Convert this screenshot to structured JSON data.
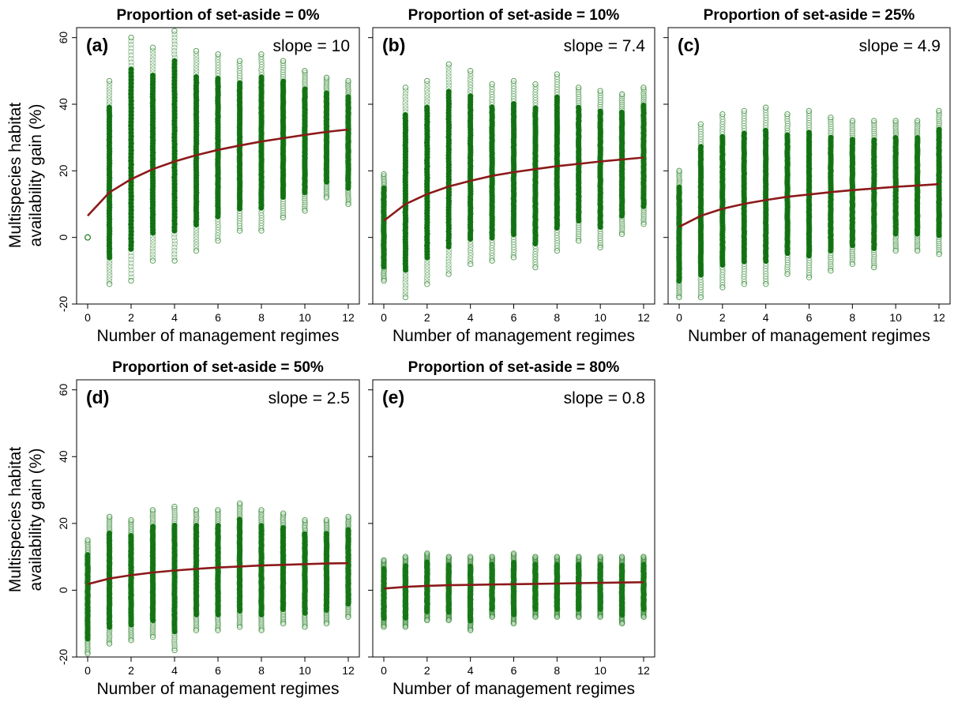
{
  "figure": {
    "ylabel_lines": [
      "Multispecies habitat",
      "availability gain (%)"
    ]
  },
  "colors": {
    "points": "#1a7a1a",
    "points_dense": "#0e6b0e",
    "curve": "#8b1a1a",
    "axis": "#000000"
  },
  "chart_data": [
    {
      "type": "scatter",
      "title": "Proportion of set-aside = 0%",
      "panel_label": "(a)",
      "annotation": "slope = 10",
      "xlabel": "Number of management regimes",
      "ylabel": "Multispecies habitat availability gain (%)",
      "xlim": [
        0,
        12
      ],
      "ylim": [
        -20,
        63
      ],
      "x_ticks": [
        0,
        2,
        4,
        6,
        8,
        10,
        12
      ],
      "y_ticks": [
        -20,
        0,
        20,
        40,
        60
      ],
      "points_ranges": [
        {
          "x": 0,
          "min": 0,
          "max": 0
        },
        {
          "x": 1,
          "min": -14,
          "max": 47
        },
        {
          "x": 2,
          "min": -13,
          "max": 60
        },
        {
          "x": 3,
          "min": -7,
          "max": 57
        },
        {
          "x": 4,
          "min": -7,
          "max": 62
        },
        {
          "x": 5,
          "min": -4,
          "max": 56
        },
        {
          "x": 6,
          "min": -1,
          "max": 55
        },
        {
          "x": 7,
          "min": 2,
          "max": 53
        },
        {
          "x": 8,
          "min": 2,
          "max": 55
        },
        {
          "x": 9,
          "min": 6,
          "max": 53
        },
        {
          "x": 10,
          "min": 8,
          "max": 50
        },
        {
          "x": 11,
          "min": 12,
          "max": 48
        },
        {
          "x": 12,
          "min": 10,
          "max": 47
        }
      ],
      "fit_curve": {
        "x": [
          0,
          1,
          2,
          3,
          4,
          5,
          6,
          7,
          8,
          9,
          10,
          11,
          12
        ],
        "y": [
          6.5,
          13.5,
          17.5,
          20.5,
          22.8,
          24.7,
          26.3,
          27.6,
          28.8,
          29.8,
          30.8,
          31.7,
          32.4
        ]
      }
    },
    {
      "type": "scatter",
      "title": "Proportion of set-aside = 10%",
      "panel_label": "(b)",
      "annotation": "slope = 7.4",
      "xlabel": "Number of management regimes",
      "xlim": [
        0,
        12
      ],
      "ylim": [
        -20,
        63
      ],
      "x_ticks": [
        0,
        2,
        4,
        6,
        8,
        10,
        12
      ],
      "y_ticks": [
        -20,
        0,
        20,
        40,
        60
      ],
      "points_ranges": [
        {
          "x": 0,
          "min": -13,
          "max": 19
        },
        {
          "x": 1,
          "min": -18,
          "max": 45
        },
        {
          "x": 2,
          "min": -14,
          "max": 47
        },
        {
          "x": 3,
          "min": -11,
          "max": 52
        },
        {
          "x": 4,
          "min": -8,
          "max": 50
        },
        {
          "x": 5,
          "min": -7,
          "max": 46
        },
        {
          "x": 6,
          "min": -6,
          "max": 47
        },
        {
          "x": 7,
          "min": -9,
          "max": 46
        },
        {
          "x": 8,
          "min": -4,
          "max": 49
        },
        {
          "x": 9,
          "min": -1,
          "max": 45
        },
        {
          "x": 10,
          "min": -3,
          "max": 44
        },
        {
          "x": 11,
          "min": 1,
          "max": 43
        },
        {
          "x": 12,
          "min": 4,
          "max": 45
        }
      ],
      "fit_curve": {
        "x": [
          0,
          1,
          2,
          3,
          4,
          5,
          6,
          7,
          8,
          9,
          10,
          11,
          12
        ],
        "y": [
          5,
          10,
          13,
          15.3,
          17,
          18.5,
          19.6,
          20.5,
          21.4,
          22.1,
          22.8,
          23.4,
          24
        ]
      }
    },
    {
      "type": "scatter",
      "title": "Proportion of set-aside = 25%",
      "panel_label": "(c)",
      "annotation": "slope = 4.9",
      "xlabel": "Number of management regimes",
      "xlim": [
        0,
        12
      ],
      "ylim": [
        -20,
        63
      ],
      "x_ticks": [
        0,
        2,
        4,
        6,
        8,
        10,
        12
      ],
      "y_ticks": [
        -20,
        0,
        20,
        40,
        60
      ],
      "points_ranges": [
        {
          "x": 0,
          "min": -18,
          "max": 20
        },
        {
          "x": 1,
          "min": -18,
          "max": 34
        },
        {
          "x": 2,
          "min": -15,
          "max": 37
        },
        {
          "x": 3,
          "min": -14,
          "max": 38
        },
        {
          "x": 4,
          "min": -14,
          "max": 39
        },
        {
          "x": 5,
          "min": -11,
          "max": 37
        },
        {
          "x": 6,
          "min": -12,
          "max": 38
        },
        {
          "x": 7,
          "min": -10,
          "max": 36
        },
        {
          "x": 8,
          "min": -8,
          "max": 35
        },
        {
          "x": 9,
          "min": -9,
          "max": 35
        },
        {
          "x": 10,
          "min": -4,
          "max": 35
        },
        {
          "x": 11,
          "min": -4,
          "max": 35
        },
        {
          "x": 12,
          "min": -5,
          "max": 38
        }
      ],
      "fit_curve": {
        "x": [
          0,
          1,
          2,
          3,
          4,
          5,
          6,
          7,
          8,
          9,
          10,
          11,
          12
        ],
        "y": [
          3.2,
          6.5,
          8.6,
          10.1,
          11.2,
          12.2,
          12.9,
          13.6,
          14.2,
          14.7,
          15.2,
          15.6,
          16
        ]
      }
    },
    {
      "type": "scatter",
      "title": "Proportion of set-aside = 50%",
      "panel_label": "(d)",
      "annotation": "slope = 2.5",
      "xlabel": "Number of management regimes",
      "ylabel": "Multispecies habitat availability gain (%)",
      "xlim": [
        0,
        12
      ],
      "ylim": [
        -20,
        63
      ],
      "x_ticks": [
        0,
        2,
        4,
        6,
        8,
        10,
        12
      ],
      "y_ticks": [
        -20,
        0,
        20,
        40,
        60
      ],
      "points_ranges": [
        {
          "x": 0,
          "min": -19,
          "max": 15
        },
        {
          "x": 1,
          "min": -16,
          "max": 22
        },
        {
          "x": 2,
          "min": -15,
          "max": 21
        },
        {
          "x": 3,
          "min": -14,
          "max": 24
        },
        {
          "x": 4,
          "min": -18,
          "max": 25
        },
        {
          "x": 5,
          "min": -12,
          "max": 24
        },
        {
          "x": 6,
          "min": -12,
          "max": 24
        },
        {
          "x": 7,
          "min": -11,
          "max": 26
        },
        {
          "x": 8,
          "min": -12,
          "max": 24
        },
        {
          "x": 9,
          "min": -10,
          "max": 23
        },
        {
          "x": 10,
          "min": -11,
          "max": 21
        },
        {
          "x": 11,
          "min": -10,
          "max": 21
        },
        {
          "x": 12,
          "min": -8,
          "max": 22
        }
      ],
      "fit_curve": {
        "x": [
          0,
          1,
          2,
          3,
          4,
          5,
          6,
          7,
          8,
          9,
          10,
          11,
          12
        ],
        "y": [
          1.8,
          3.5,
          4.5,
          5.3,
          5.9,
          6.4,
          6.8,
          7.1,
          7.4,
          7.6,
          7.8,
          8,
          8.1
        ]
      }
    },
    {
      "type": "scatter",
      "title": "Proportion of set-aside = 80%",
      "panel_label": "(e)",
      "annotation": "slope = 0.8",
      "xlabel": "Number of management regimes",
      "xlim": [
        0,
        12
      ],
      "ylim": [
        -20,
        63
      ],
      "x_ticks": [
        0,
        2,
        4,
        6,
        8,
        10,
        12
      ],
      "y_ticks": [
        -20,
        0,
        20,
        40,
        60
      ],
      "points_ranges": [
        {
          "x": 0,
          "min": -11,
          "max": 9
        },
        {
          "x": 1,
          "min": -11,
          "max": 10
        },
        {
          "x": 2,
          "min": -9,
          "max": 11
        },
        {
          "x": 3,
          "min": -9,
          "max": 10
        },
        {
          "x": 4,
          "min": -12,
          "max": 10
        },
        {
          "x": 5,
          "min": -8,
          "max": 10
        },
        {
          "x": 6,
          "min": -10,
          "max": 11
        },
        {
          "x": 7,
          "min": -8,
          "max": 10
        },
        {
          "x": 8,
          "min": -8,
          "max": 10
        },
        {
          "x": 9,
          "min": -8,
          "max": 10
        },
        {
          "x": 10,
          "min": -8,
          "max": 10
        },
        {
          "x": 11,
          "min": -10,
          "max": 10
        },
        {
          "x": 12,
          "min": -8,
          "max": 10
        }
      ],
      "fit_curve": {
        "x": [
          0,
          1,
          2,
          3,
          4,
          5,
          6,
          7,
          8,
          9,
          10,
          11,
          12
        ],
        "y": [
          0.5,
          1,
          1.3,
          1.5,
          1.6,
          1.7,
          1.8,
          1.9,
          2,
          2.1,
          2.2,
          2.3,
          2.4
        ]
      }
    }
  ]
}
